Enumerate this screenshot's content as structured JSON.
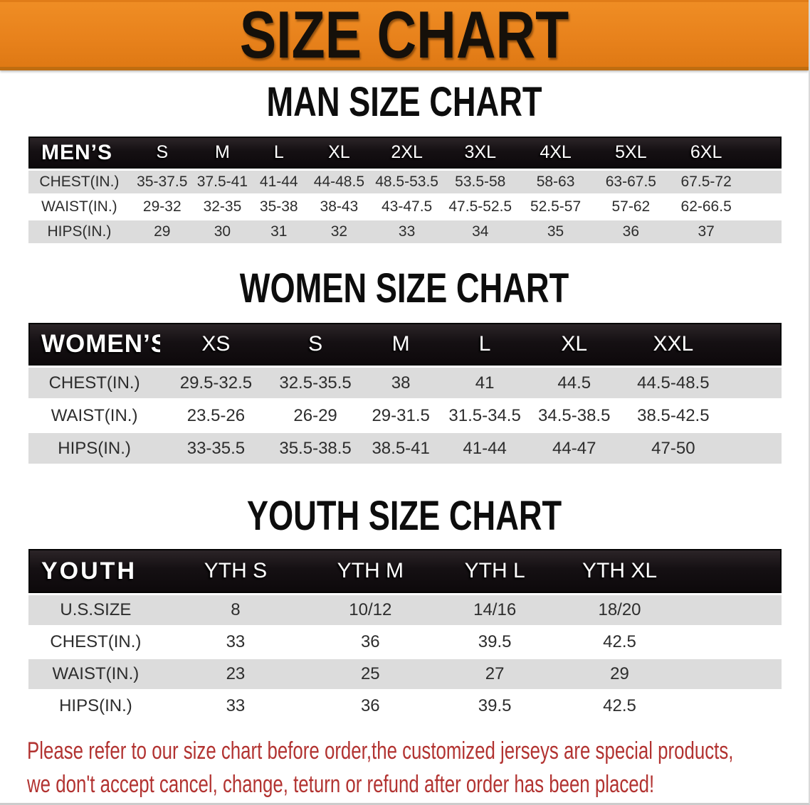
{
  "banner": {
    "title": "SIZE CHART"
  },
  "sections": [
    {
      "title": "MAN SIZE CHART",
      "header_label": "MEN’S",
      "columns": [
        "S",
        "M",
        "L",
        "XL",
        "2XL",
        "3XL",
        "4XL",
        "5XL",
        "6XL"
      ],
      "rows": [
        {
          "label": "CHEST(IN.)",
          "values": [
            "35-37.5",
            "37.5-41",
            "41-44",
            "44-48.5",
            "48.5-53.5",
            "53.5-58",
            "58-63",
            "63-67.5",
            "67.5-72"
          ]
        },
        {
          "label": "WAIST(IN.)",
          "values": [
            "29-32",
            "32-35",
            "35-38",
            "38-43",
            "43-47.5",
            "47.5-52.5",
            "52.5-57",
            "57-62",
            "62-66.5"
          ]
        },
        {
          "label": "HIPS(IN.)",
          "values": [
            "29",
            "30",
            "31",
            "32",
            "33",
            "34",
            "35",
            "36",
            "37"
          ]
        }
      ]
    },
    {
      "title": "WOMEN SIZE CHART",
      "header_label": "WOMEN’S",
      "columns": [
        "XS",
        "S",
        "M",
        "L",
        "XL",
        "XXL"
      ],
      "rows": [
        {
          "label": "CHEST(IN.)",
          "values": [
            "29.5-32.5",
            "32.5-35.5",
            "38",
            "41",
            "44.5",
            "44.5-48.5"
          ]
        },
        {
          "label": "WAIST(IN.)",
          "values": [
            "23.5-26",
            "26-29",
            "29-31.5",
            "31.5-34.5",
            "34.5-38.5",
            "38.5-42.5"
          ]
        },
        {
          "label": "HIPS(IN.)",
          "values": [
            "33-35.5",
            "35.5-38.5",
            "38.5-41",
            "41-44",
            "44-47",
            "47-50"
          ]
        }
      ]
    },
    {
      "title": "YOUTH SIZE CHART",
      "header_label": "YOUTH",
      "columns": [
        "YTH S",
        "YTH M",
        "YTH L",
        "YTH XL"
      ],
      "rows": [
        {
          "label": "U.S.SIZE",
          "values": [
            "8",
            "10/12",
            "14/16",
            "18/20"
          ]
        },
        {
          "label": "CHEST(IN.)",
          "values": [
            "33",
            "36",
            "39.5",
            "42.5"
          ]
        },
        {
          "label": "WAIST(IN.)",
          "values": [
            "23",
            "25",
            "27",
            "29"
          ]
        },
        {
          "label": "HIPS(IN.)",
          "values": [
            "33",
            "36",
            "39.5",
            "42.5"
          ]
        }
      ]
    }
  ],
  "footer": {
    "line1": "Please refer to our size chart before order,the customized jerseys are special products,",
    "line2": "we don't accept cancel, change, teturn or refund after order has been placed!"
  },
  "theme": {
    "banner_bg": "#E8821C",
    "header_bar_bg": "#151013",
    "shaded_row_bg": "#DCDCDC",
    "notice_text_color": "#B23331",
    "title_color": "#15100A"
  }
}
